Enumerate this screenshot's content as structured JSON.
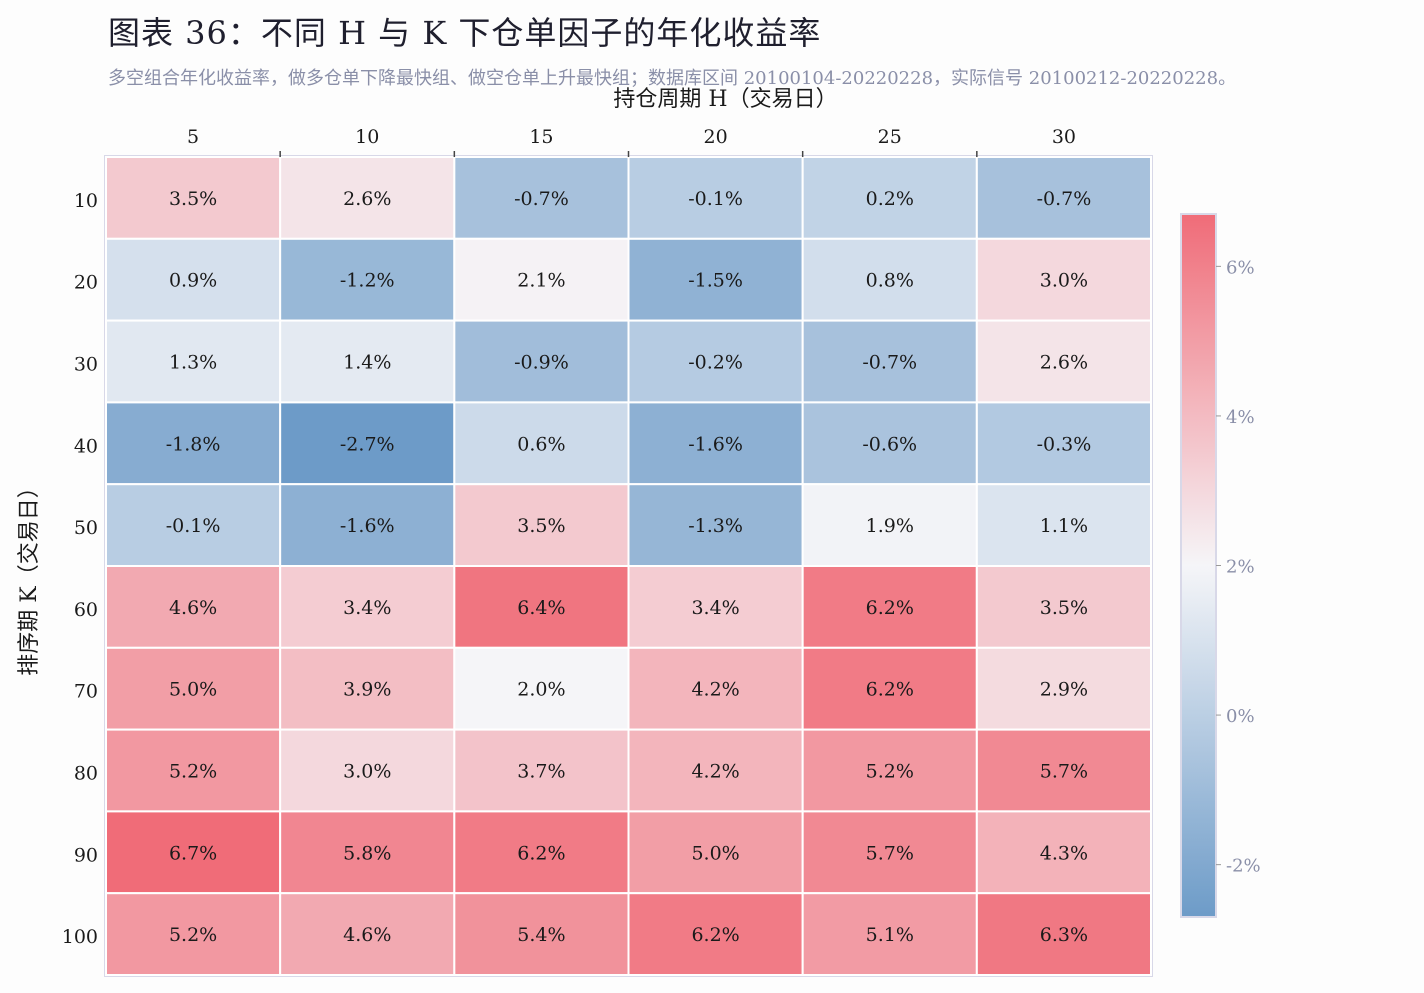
{
  "title": "图表 36：不同 H 与 K 下仓单因子的年化收益率",
  "subtitle": "多空组合年化收益率，做多仓单下降最快组、做空仓单上升最快组；数据库区间 20100104-20220228，实际信号 20100212-20220228。",
  "chart_data": {
    "type": "heatmap",
    "xlabel": "持仓周期 H（交易日）",
    "ylabel": "排序期 K（交易日）",
    "x_categories": [
      "5",
      "10",
      "15",
      "20",
      "25",
      "30"
    ],
    "y_categories": [
      "10",
      "20",
      "30",
      "40",
      "50",
      "60",
      "70",
      "80",
      "90",
      "100"
    ],
    "values": [
      [
        3.5,
        2.6,
        -0.7,
        -0.1,
        0.2,
        -0.7
      ],
      [
        0.9,
        -1.2,
        2.1,
        -1.5,
        0.8,
        3.0
      ],
      [
        1.3,
        1.4,
        -0.9,
        -0.2,
        -0.7,
        2.6
      ],
      [
        -1.8,
        -2.7,
        0.6,
        -1.6,
        -0.6,
        -0.3
      ],
      [
        -0.1,
        -1.6,
        3.5,
        -1.3,
        1.9,
        1.1
      ],
      [
        4.6,
        3.4,
        6.4,
        3.4,
        6.2,
        3.5
      ],
      [
        5.0,
        3.9,
        2.0,
        4.2,
        6.2,
        2.9
      ],
      [
        5.2,
        3.0,
        3.7,
        4.2,
        5.2,
        5.7
      ],
      [
        6.7,
        5.8,
        6.2,
        5.0,
        5.7,
        4.3
      ],
      [
        5.2,
        4.6,
        5.4,
        6.2,
        5.1,
        6.3
      ]
    ],
    "value_suffix": "%",
    "colorbar": {
      "vmin": -2.7,
      "vmax": 6.7,
      "center": 2.0,
      "ticks": [
        -2,
        0,
        2,
        4,
        6
      ],
      "tick_labels": [
        "-2%",
        "0%",
        "2%",
        "4%",
        "6%"
      ]
    },
    "colors": {
      "low": "#6d9bc8",
      "mid": "#f5f5f8",
      "high": "#f06c78",
      "grid_line": "#ffffff",
      "border": "#d8d8e8"
    }
  }
}
